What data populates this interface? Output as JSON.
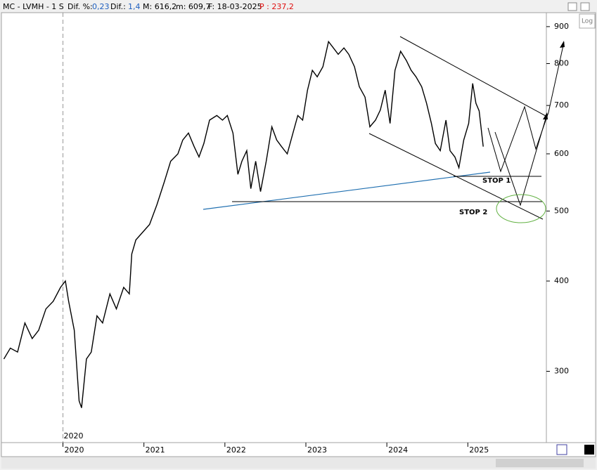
{
  "header": {
    "symbol": "MC - LVMH - 1 S",
    "dif_pct_label": "Dif. %:",
    "dif_pct": "0,23",
    "dif_label": "Dif.:",
    "dif": "1,4",
    "max": "M: 616,2",
    "min": "m: 609,7",
    "date": "F: 18-03-2025",
    "last": "P : 237,2",
    "log_button": "Log"
  },
  "chart_data": {
    "type": "line",
    "color": "#000000",
    "log_scale": true,
    "grid": false,
    "annotations": [
      "STOP 1",
      "STOP 2"
    ],
    "period_label": "2020",
    "x": [
      2019.27,
      2019.35,
      2019.44,
      2019.53,
      2019.62,
      2019.7,
      2019.79,
      2019.88,
      2019.97,
      2020.03,
      2020.07,
      2020.14,
      2020.2,
      2020.23,
      2020.29,
      2020.35,
      2020.42,
      2020.49,
      2020.58,
      2020.66,
      2020.75,
      2020.82,
      2020.85,
      2020.9,
      2020.99,
      2021.07,
      2021.16,
      2021.25,
      2021.33,
      2021.42,
      2021.48,
      2021.55,
      2021.62,
      2021.68,
      2021.74,
      2021.81,
      2021.9,
      2021.97,
      2022.03,
      2022.1,
      2022.16,
      2022.21,
      2022.27,
      2022.32,
      2022.38,
      2022.44,
      2022.51,
      2022.58,
      2022.64,
      2022.7,
      2022.77,
      2022.84,
      2022.9,
      2022.96,
      2023.02,
      2023.08,
      2023.14,
      2023.21,
      2023.28,
      2023.34,
      2023.4,
      2023.47,
      2023.53,
      2023.6,
      2023.66,
      2023.73,
      2023.79,
      2023.86,
      2023.92,
      2023.98,
      2024.04,
      2024.1,
      2024.17,
      2024.24,
      2024.3,
      2024.36,
      2024.43,
      2024.49,
      2024.55,
      2024.6,
      2024.66,
      2024.73,
      2024.78,
      2024.84,
      2024.89,
      2024.95,
      2025.01,
      2025.06,
      2025.1,
      2025.14,
      2025.19
    ],
    "values": [
      312,
      323,
      319,
      350,
      333,
      342,
      366,
      375,
      392,
      400,
      375,
      342,
      273,
      267,
      312,
      319,
      358,
      350,
      384,
      366,
      392,
      384,
      436,
      456,
      468,
      479,
      510,
      548,
      586,
      600,
      627,
      641,
      614,
      594,
      620,
      668,
      678,
      668,
      678,
      641,
      562,
      586,
      606,
      537,
      586,
      532,
      586,
      654,
      627,
      614,
      600,
      641,
      678,
      668,
      735,
      783,
      767,
      792,
      858,
      841,
      824,
      841,
      824,
      792,
      743,
      719,
      654,
      668,
      690,
      735,
      661,
      783,
      832,
      808,
      783,
      767,
      743,
      705,
      661,
      620,
      606,
      668,
      606,
      594,
      574,
      627,
      661,
      751,
      705,
      688,
      614
    ],
    "xlim": [
      2019.24,
      2025.97
    ],
    "xticks": [
      2020,
      2021,
      2022,
      2023,
      2024,
      2025
    ],
    "ylim": [
      239,
      941
    ],
    "yticks": [
      300,
      400,
      500,
      600,
      700,
      800,
      900
    ]
  }
}
